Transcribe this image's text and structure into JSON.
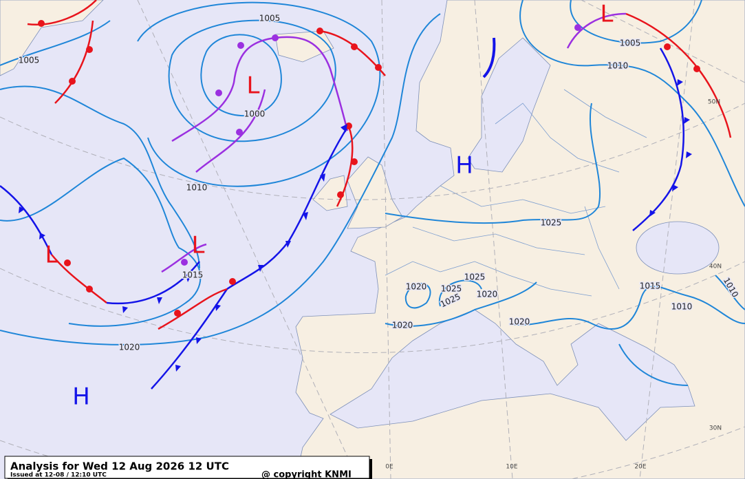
{
  "header": {
    "title": "Analysis for Wed 12 Aug 2026 12 UTC",
    "issued": "Issued at 12-08 / 12:10 UTC",
    "copyright": "@ copyright KNMI"
  },
  "pressure_centers": [
    {
      "label": "L",
      "color": "#e8141c"
    },
    {
      "label": "L",
      "color": "#e8141c"
    },
    {
      "label": "L",
      "color": "#e8141c"
    },
    {
      "label": "L",
      "color": "#e8141c"
    },
    {
      "label": "H",
      "color": "#1414e8"
    },
    {
      "label": "H",
      "color": "#1414e8"
    }
  ],
  "isobar_labels": [
    1005,
    1005,
    1005,
    1010,
    1000,
    1010,
    1015,
    1020,
    1025,
    1020,
    1025,
    1025,
    1025,
    1020,
    1020,
    1020,
    1015,
    1010,
    1010
  ],
  "graticule_labels": [
    "0E",
    "10E",
    "20E",
    "30N",
    "40N",
    "50N"
  ]
}
